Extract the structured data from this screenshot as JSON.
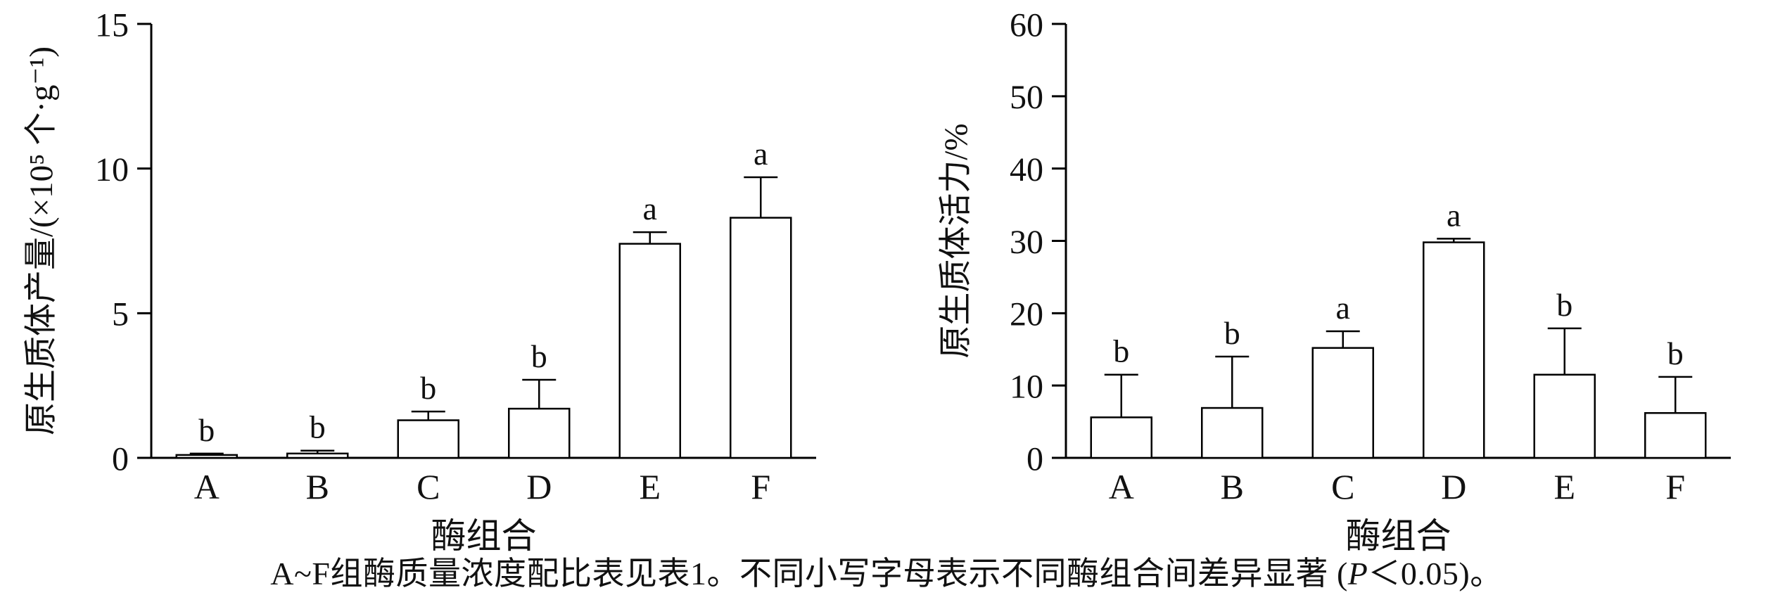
{
  "caption": {
    "pre": "A~F组酶质量浓度配比表见表1。不同小写字母表示不同酶组合间差异显著 (",
    "p_italic": "P",
    "post": "＜0.05)。"
  },
  "chart_data": [
    {
      "type": "bar",
      "title": "",
      "categories": [
        "A",
        "B",
        "C",
        "D",
        "E",
        "F"
      ],
      "values": [
        0.1,
        0.15,
        1.3,
        1.7,
        7.4,
        8.3
      ],
      "errors": [
        0.05,
        0.1,
        0.3,
        1.0,
        0.4,
        1.4
      ],
      "sig_letters": [
        "b",
        "b",
        "b",
        "b",
        "a",
        "a"
      ],
      "xlabel": "酶组合",
      "ylabel": "原生质体产量/(×10⁵ 个·g⁻¹)",
      "ylim": [
        0,
        15
      ],
      "yticks": [
        0,
        5,
        10,
        15
      ],
      "grid": false,
      "legend": "none",
      "bar_fill": "#ffffff",
      "bar_stroke": "#000000"
    },
    {
      "type": "bar",
      "title": "",
      "categories": [
        "A",
        "B",
        "C",
        "D",
        "E",
        "F"
      ],
      "values": [
        5.6,
        6.9,
        15.2,
        29.8,
        11.5,
        6.2
      ],
      "errors": [
        5.9,
        7.1,
        2.3,
        0.5,
        6.4,
        5.0
      ],
      "sig_letters": [
        "b",
        "b",
        "a",
        "a",
        "b",
        "b"
      ],
      "xlabel": "酶组合",
      "ylabel": "原生质体活力/%",
      "ylim": [
        0,
        60
      ],
      "yticks": [
        0,
        10,
        20,
        30,
        40,
        50,
        60
      ],
      "grid": false,
      "legend": "none",
      "bar_fill": "#ffffff",
      "bar_stroke": "#000000"
    }
  ]
}
